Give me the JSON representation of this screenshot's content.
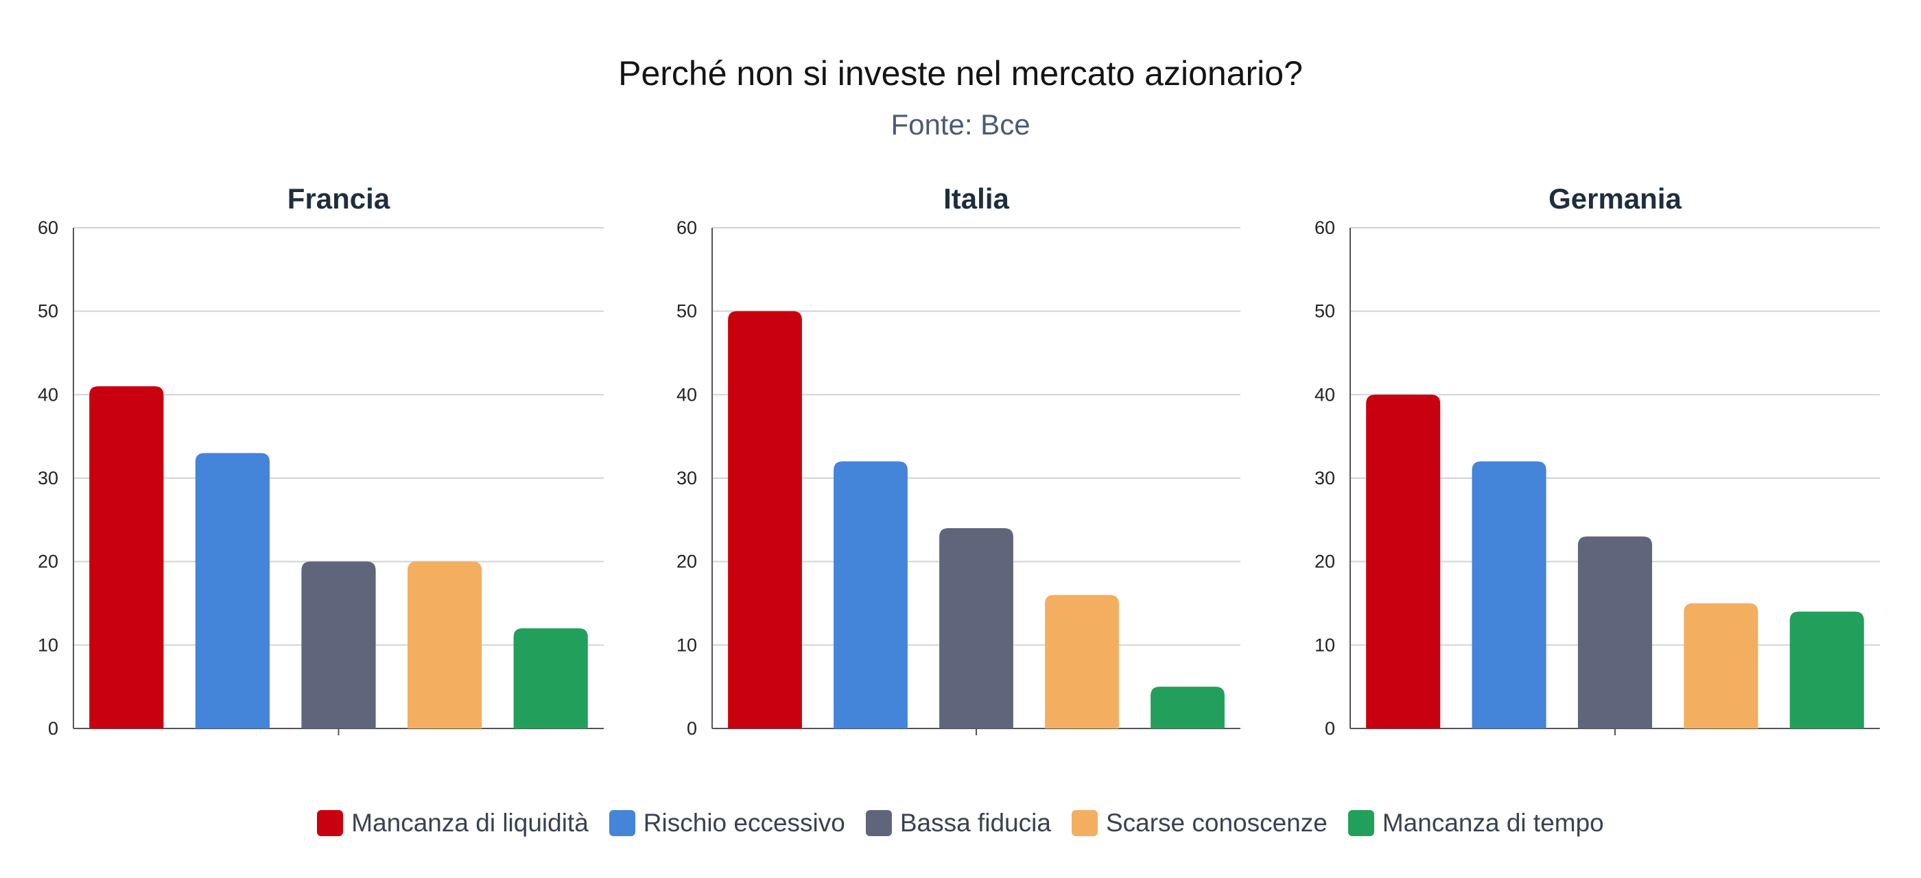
{
  "title": "Perché non si investe nel mercato azionario?",
  "subtitle": "Fonte: Bce",
  "legend": [
    {
      "label": "Mancanza di liquidità",
      "color": "#c8000f"
    },
    {
      "label": "Rischio eccessivo",
      "color": "#4484d9"
    },
    {
      "label": "Bassa fiducia",
      "color": "#5f667b"
    },
    {
      "label": "Scarse conoscenze",
      "color": "#f4ae5f"
    },
    {
      "label": "Mancanza di tempo",
      "color": "#22a05b"
    }
  ],
  "chart_data": [
    {
      "type": "bar",
      "title": "Francia",
      "categories": [
        "Mancanza di liquidità",
        "Rischio eccessivo",
        "Bassa fiducia",
        "Scarse conoscenze",
        "Mancanza di tempo"
      ],
      "values": [
        41,
        33,
        20,
        20,
        12
      ],
      "colors": [
        "#c8000f",
        "#4484d9",
        "#5f667b",
        "#f4ae5f",
        "#22a05b"
      ],
      "ylim": [
        0,
        60
      ],
      "yticks": [
        "0",
        "10",
        "20",
        "30",
        "40",
        "50",
        "60"
      ],
      "grid": true
    },
    {
      "type": "bar",
      "title": "Italia",
      "categories": [
        "Mancanza di liquidità",
        "Rischio eccessivo",
        "Bassa fiducia",
        "Scarse conoscenze",
        "Mancanza di tempo"
      ],
      "values": [
        50,
        32,
        24,
        16,
        5
      ],
      "colors": [
        "#c8000f",
        "#4484d9",
        "#5f667b",
        "#f4ae5f",
        "#22a05b"
      ],
      "ylim": [
        0,
        60
      ],
      "yticks": [
        "0",
        "10",
        "20",
        "30",
        "40",
        "50",
        "60"
      ],
      "grid": true
    },
    {
      "type": "bar",
      "title": "Germania",
      "categories": [
        "Mancanza di liquidità",
        "Rischio eccessivo",
        "Bassa fiducia",
        "Scarse conoscenze",
        "Mancanza di tempo"
      ],
      "values": [
        40,
        32,
        23,
        15,
        14
      ],
      "colors": [
        "#c8000f",
        "#4484d9",
        "#5f667b",
        "#f4ae5f",
        "#22a05b"
      ],
      "ylim": [
        0,
        60
      ],
      "yticks": [
        "0",
        "10",
        "20",
        "30",
        "40",
        "50",
        "60"
      ],
      "grid": true
    }
  ]
}
